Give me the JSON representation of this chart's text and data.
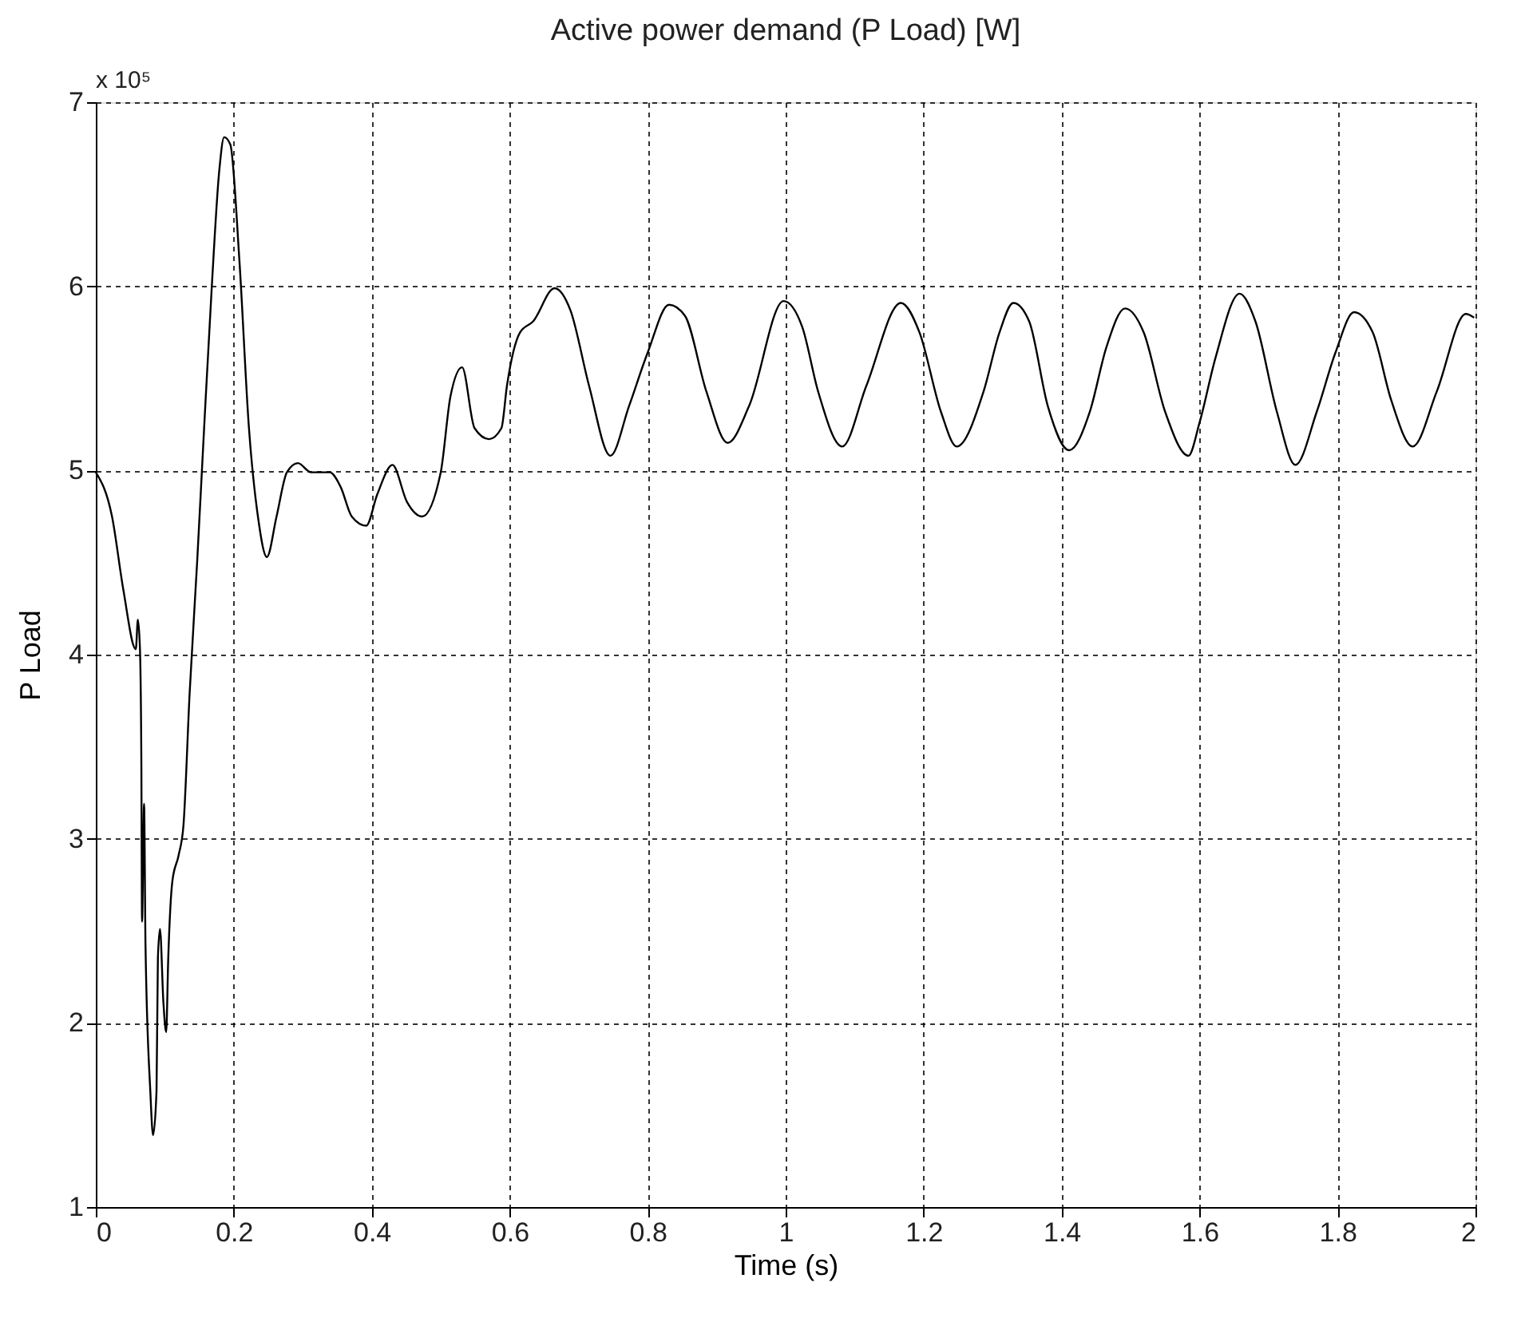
{
  "chart_data": {
    "type": "line",
    "title": "Active power demand (P Load) [W]",
    "xlabel": "Time (s)",
    "ylabel": "P Load",
    "annotations": [
      "x 10⁵"
    ],
    "x": [
      0,
      0.0235,
      0.04,
      0.058,
      0.061,
      0.064,
      0.066,
      0.067,
      0.07,
      0.072,
      0.079,
      0.083,
      0.088,
      0.09,
      0.093,
      0.098,
      0.102,
      0.105,
      0.111,
      0.12,
      0.127,
      0.136,
      0.147,
      0.157,
      0.168,
      0.179,
      0.186,
      0.195,
      0.208,
      0.222,
      0.235,
      0.248,
      0.262,
      0.277,
      0.293,
      0.312,
      0.339,
      0.355,
      0.371,
      0.392,
      0.408,
      0.43,
      0.451,
      0.473,
      0.5,
      0.514,
      0.531,
      0.549,
      0.57,
      0.588,
      0.596,
      0.615,
      0.634,
      0.665,
      0.688,
      0.715,
      0.746,
      0.773,
      0.8,
      0.831,
      0.854,
      0.885,
      0.916,
      0.947,
      0.997,
      1.024,
      1.047,
      1.082,
      1.117,
      1.167,
      1.194,
      1.225,
      1.248,
      1.287,
      1.31,
      1.33,
      1.353,
      1.38,
      1.411,
      1.441,
      1.465,
      1.492,
      1.519,
      1.55,
      1.584,
      1.6,
      1.623,
      1.658,
      1.681,
      1.712,
      1.739,
      1.77,
      1.797,
      1.824,
      1.851,
      1.878,
      1.909,
      1.944,
      1.986,
      1.998
    ],
    "series": [
      {
        "color": "#000000",
        "values": [
          4.99,
          4.75,
          4.35,
          4.03,
          4.19,
          4.03,
          3.43,
          2.55,
          3.19,
          2.43,
          1.63,
          1.39,
          1.63,
          2.35,
          2.51,
          2.11,
          1.95,
          2.35,
          2.77,
          2.91,
          3.07,
          3.79,
          4.51,
          5.23,
          5.99,
          6.63,
          6.81,
          6.77,
          6.15,
          5.23,
          4.75,
          4.53,
          4.75,
          4.99,
          5.04,
          4.99,
          4.99,
          4.91,
          4.75,
          4.7,
          4.87,
          5.03,
          4.83,
          4.75,
          4.99,
          5.4,
          5.56,
          5.23,
          5.17,
          5.23,
          5.46,
          5.75,
          5.81,
          5.99,
          5.87,
          5.46,
          5.08,
          5.35,
          5.64,
          5.9,
          5.84,
          5.43,
          5.15,
          5.35,
          5.92,
          5.78,
          5.43,
          5.13,
          5.46,
          5.91,
          5.75,
          5.32,
          5.13,
          5.43,
          5.75,
          5.91,
          5.81,
          5.35,
          5.11,
          5.32,
          5.67,
          5.88,
          5.75,
          5.32,
          5.08,
          5.26,
          5.61,
          5.96,
          5.81,
          5.32,
          5.03,
          5.32,
          5.64,
          5.86,
          5.75,
          5.38,
          5.13,
          5.43,
          5.85,
          5.83
        ]
      }
    ],
    "xlim": [
      0,
      2
    ],
    "xticks": [
      0,
      0.2,
      0.4,
      0.6,
      0.8,
      1,
      1.2,
      1.4,
      1.6,
      1.8,
      2
    ],
    "ylim": [
      1,
      7
    ],
    "yticks": [
      1,
      2,
      3,
      4,
      5,
      6,
      7
    ],
    "grid": true,
    "line_style": "solid"
  }
}
